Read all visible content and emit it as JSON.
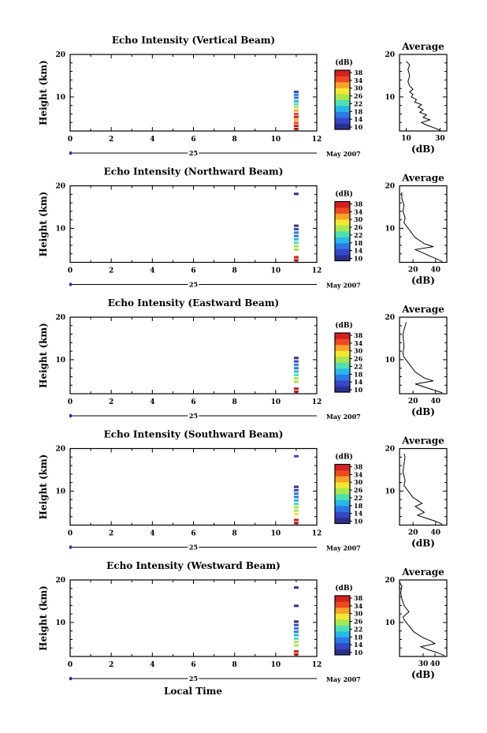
{
  "chart_data": {
    "type": "heatmap",
    "x_tick_labels": [
      "0",
      "2",
      "4",
      "6",
      "8",
      "10",
      "12"
    ],
    "xlim": [
      0,
      12
    ],
    "y_tick_labels": [
      "10",
      "20"
    ],
    "ylim": [
      2,
      20
    ],
    "ylabel": "Height (km)",
    "xlabel": "Local Time",
    "date_day": "25",
    "date_month": "May 2007",
    "colorbar_unit": "(dB)",
    "colorbar_ticks": [
      "10",
      "14",
      "18",
      "22",
      "26",
      "30",
      "34",
      "38"
    ],
    "colorbar_colors": [
      "#2c2f8e",
      "#3448c8",
      "#2e78e6",
      "#27b8e8",
      "#4fe0b0",
      "#a8e650",
      "#f2e832",
      "#f7a228",
      "#ee4a22",
      "#d42020"
    ],
    "profile_title": "Average",
    "profile_xlabel": "(dB)",
    "panels": [
      {
        "title": "Echo Intensity (Vertical Beam)",
        "profile_x_ticks": [
          "10",
          "30"
        ],
        "profile_xlim": [
          6,
          34
        ],
        "obs_time": 11,
        "echo_cells": [
          [
            2.5,
            38
          ],
          [
            3.2,
            36
          ],
          [
            3.9,
            34
          ],
          [
            4.6,
            32
          ],
          [
            5.3,
            36
          ],
          [
            6.0,
            33
          ],
          [
            6.8,
            30
          ],
          [
            7.6,
            24
          ],
          [
            8.3,
            22
          ],
          [
            9.0,
            20
          ],
          [
            9.8,
            18
          ],
          [
            10.5,
            16
          ],
          [
            11.2,
            14
          ]
        ],
        "profile": [
          [
            2.2,
            30
          ],
          [
            2.8,
            26
          ],
          [
            3.4,
            22
          ],
          [
            4.0,
            19
          ],
          [
            4.6,
            24
          ],
          [
            5.2,
            20
          ],
          [
            5.8,
            22
          ],
          [
            6.4,
            18
          ],
          [
            7.0,
            20
          ],
          [
            7.6,
            17
          ],
          [
            8.2,
            19
          ],
          [
            8.8,
            15
          ],
          [
            9.4,
            16
          ],
          [
            10.0,
            13
          ],
          [
            10.6,
            14
          ],
          [
            11.2,
            12
          ],
          [
            11.8,
            14
          ],
          [
            12.6,
            12
          ],
          [
            13.6,
            11
          ],
          [
            15.0,
            12
          ],
          [
            16.5,
            11
          ],
          [
            17.5,
            12
          ],
          [
            18.4,
            10
          ]
        ]
      },
      {
        "title": "Echo Intensity (Northward Beam)",
        "profile_x_ticks": [
          "20",
          "40"
        ],
        "profile_xlim": [
          8,
          50
        ],
        "obs_time": 11,
        "echo_cells": [
          [
            2.5,
            38
          ],
          [
            3.2,
            36
          ],
          [
            5.0,
            26
          ],
          [
            5.8,
            24
          ],
          [
            6.6,
            22
          ],
          [
            7.4,
            20
          ],
          [
            8.2,
            18
          ],
          [
            9.0,
            16
          ],
          [
            9.8,
            14
          ],
          [
            10.6,
            12
          ],
          [
            18.1,
            12
          ]
        ],
        "profile": [
          [
            2.2,
            46
          ],
          [
            2.9,
            40
          ],
          [
            3.6,
            34
          ],
          [
            4.3,
            28
          ],
          [
            5.0,
            22
          ],
          [
            5.7,
            38
          ],
          [
            6.4,
            30
          ],
          [
            7.1,
            26
          ],
          [
            7.8,
            22
          ],
          [
            8.5,
            20
          ],
          [
            9.2,
            18
          ],
          [
            9.9,
            16
          ],
          [
            10.6,
            14
          ],
          [
            11.3,
            12
          ],
          [
            12.5,
            13
          ],
          [
            14.0,
            11
          ],
          [
            15.5,
            12
          ],
          [
            17.0,
            10
          ],
          [
            18.5,
            10
          ]
        ]
      },
      {
        "title": "Echo Intensity (Eastward Beam)",
        "profile_x_ticks": [
          "20",
          "40"
        ],
        "profile_xlim": [
          8,
          50
        ],
        "obs_time": 11,
        "echo_cells": [
          [
            2.5,
            38
          ],
          [
            3.2,
            36
          ],
          [
            4.8,
            26
          ],
          [
            5.6,
            24
          ],
          [
            6.4,
            22
          ],
          [
            7.2,
            20
          ],
          [
            8.0,
            18
          ],
          [
            8.8,
            16
          ],
          [
            9.6,
            14
          ],
          [
            10.4,
            12
          ]
        ],
        "profile": [
          [
            2.2,
            46
          ],
          [
            2.9,
            38
          ],
          [
            3.6,
            30
          ],
          [
            4.3,
            22
          ],
          [
            5.0,
            38
          ],
          [
            5.7,
            30
          ],
          [
            6.4,
            26
          ],
          [
            7.1,
            22
          ],
          [
            7.8,
            20
          ],
          [
            8.5,
            18
          ],
          [
            9.2,
            16
          ],
          [
            9.9,
            14
          ],
          [
            10.6,
            12
          ],
          [
            11.5,
            11
          ],
          [
            13.0,
            12
          ],
          [
            16.0,
            11
          ],
          [
            18.0,
            13
          ],
          [
            18.8,
            14
          ]
        ]
      },
      {
        "title": "Echo Intensity (Southward Beam)",
        "profile_x_ticks": [
          "20",
          "40"
        ],
        "profile_xlim": [
          8,
          50
        ],
        "obs_time": 11,
        "echo_cells": [
          [
            2.5,
            38
          ],
          [
            3.2,
            36
          ],
          [
            4.6,
            28
          ],
          [
            5.4,
            26
          ],
          [
            6.2,
            24
          ],
          [
            7.0,
            22
          ],
          [
            7.8,
            20
          ],
          [
            8.6,
            18
          ],
          [
            9.4,
            16
          ],
          [
            10.2,
            14
          ],
          [
            11.0,
            12
          ],
          [
            18.2,
            14
          ]
        ],
        "profile": [
          [
            2.2,
            46
          ],
          [
            2.9,
            40
          ],
          [
            3.6,
            32
          ],
          [
            4.3,
            24
          ],
          [
            5.0,
            30
          ],
          [
            5.7,
            26
          ],
          [
            6.4,
            22
          ],
          [
            7.1,
            28
          ],
          [
            7.8,
            24
          ],
          [
            8.5,
            20
          ],
          [
            9.2,
            18
          ],
          [
            9.9,
            16
          ],
          [
            10.6,
            14
          ],
          [
            11.3,
            12
          ],
          [
            12.5,
            13
          ],
          [
            14.5,
            11
          ],
          [
            16.5,
            12
          ],
          [
            18.0,
            13
          ],
          [
            18.8,
            12
          ]
        ]
      },
      {
        "title": "Echo Intensity (Westward Beam)",
        "profile_x_ticks": [
          "30",
          "40"
        ],
        "profile_xlim": [
          10,
          50
        ],
        "obs_time": 11,
        "echo_cells": [
          [
            2.5,
            38
          ],
          [
            3.2,
            36
          ],
          [
            4.6,
            26
          ],
          [
            5.4,
            24
          ],
          [
            6.2,
            22
          ],
          [
            7.0,
            20
          ],
          [
            7.8,
            18
          ],
          [
            8.6,
            16
          ],
          [
            9.4,
            14
          ],
          [
            10.2,
            12
          ],
          [
            13.9,
            12
          ],
          [
            18.2,
            10
          ]
        ],
        "profile": [
          [
            2.2,
            48
          ],
          [
            2.9,
            42
          ],
          [
            3.6,
            34
          ],
          [
            4.3,
            28
          ],
          [
            5.0,
            40
          ],
          [
            5.7,
            36
          ],
          [
            6.4,
            30
          ],
          [
            7.1,
            26
          ],
          [
            7.8,
            22
          ],
          [
            8.5,
            20
          ],
          [
            9.2,
            18
          ],
          [
            9.9,
            16
          ],
          [
            10.6,
            14
          ],
          [
            11.3,
            13
          ],
          [
            12.5,
            18
          ],
          [
            13.9,
            14
          ],
          [
            15.5,
            12
          ],
          [
            17.0,
            11
          ],
          [
            18.5,
            12
          ],
          [
            19.5,
            10
          ]
        ]
      }
    ]
  }
}
